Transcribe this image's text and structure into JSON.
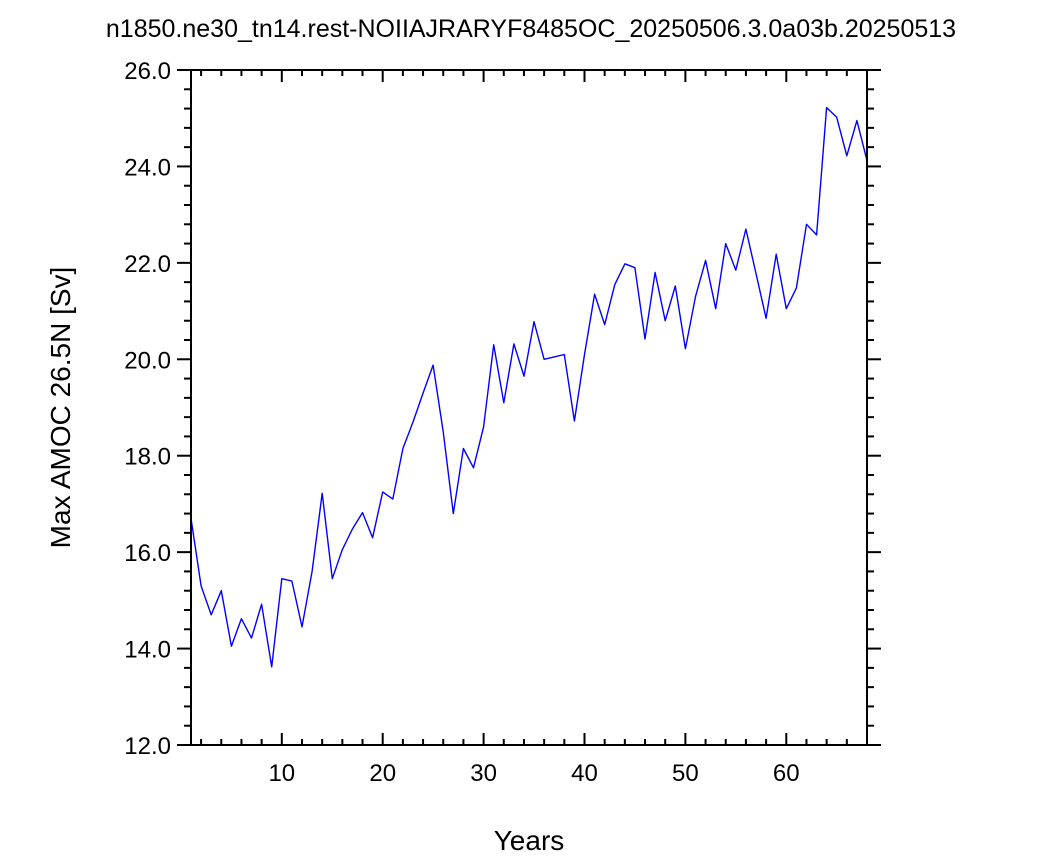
{
  "chart_data": {
    "type": "line",
    "title": "n1850.ne30_tn14.rest-NOIIAJRARYF8485OC_20250506.3.0a03b.20250513",
    "xlabel": "Years",
    "ylabel": "Max AMOC 26.5N [Sv]",
    "xlim": [
      1,
      68
    ],
    "ylim": [
      12.0,
      26.0
    ],
    "x_ticks": [
      "10",
      "20",
      "30",
      "40",
      "50",
      "60"
    ],
    "x_tick_values": [
      10,
      20,
      30,
      40,
      50,
      60
    ],
    "y_ticks": [
      "12.0",
      "14.0",
      "16.0",
      "18.0",
      "20.0",
      "22.0",
      "24.0",
      "26.0"
    ],
    "y_tick_values": [
      12.0,
      14.0,
      16.0,
      18.0,
      20.0,
      22.0,
      24.0,
      26.0
    ],
    "grid": false,
    "line_color": "#0000ff",
    "series": [
      {
        "x": [
          1,
          2,
          3,
          4,
          5,
          6,
          7,
          8,
          9,
          10,
          11,
          12,
          13,
          14,
          15,
          16,
          17,
          18,
          19,
          20,
          21,
          22,
          23,
          24,
          25,
          26,
          27,
          28,
          29,
          30,
          31,
          32,
          33,
          34,
          35,
          36,
          37,
          38,
          39,
          40,
          41,
          42,
          43,
          44,
          45,
          46,
          47,
          48,
          49,
          50,
          51,
          52,
          53,
          54,
          55,
          56,
          57,
          58,
          59,
          60,
          61,
          62,
          63,
          64,
          65,
          66,
          67,
          68
        ],
        "values": [
          16.7,
          15.3,
          14.7,
          15.2,
          14.05,
          14.62,
          14.22,
          14.92,
          13.62,
          15.45,
          15.4,
          14.45,
          15.6,
          17.22,
          15.45,
          16.05,
          16.48,
          16.82,
          16.3,
          17.25,
          17.1,
          18.15,
          18.7,
          19.3,
          19.88,
          18.5,
          16.8,
          18.15,
          17.75,
          18.6,
          20.3,
          19.1,
          20.32,
          19.65,
          20.78,
          20.0,
          20.05,
          20.1,
          18.72,
          20.1,
          21.35,
          20.72,
          21.55,
          21.98,
          21.9,
          20.42,
          21.8,
          20.8,
          21.52,
          20.22,
          21.3,
          22.05,
          21.05,
          22.4,
          21.85,
          22.7,
          21.78,
          20.85,
          22.18,
          21.05,
          21.48,
          22.8,
          22.58,
          25.22,
          25.02,
          24.22,
          24.95,
          24.12
        ]
      }
    ]
  }
}
